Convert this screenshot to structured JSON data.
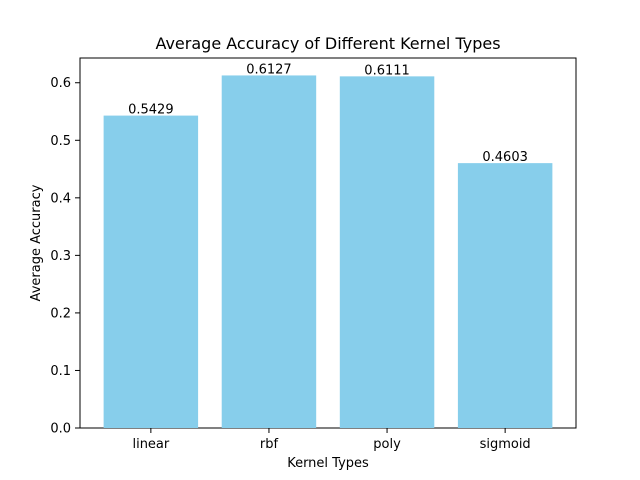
{
  "chart_data": {
    "type": "bar",
    "title": "Average Accuracy of Different Kernel Types",
    "xlabel": "Kernel Types",
    "ylabel": "Average Accuracy",
    "categories": [
      "linear",
      "rbf",
      "poly",
      "sigmoid"
    ],
    "values": [
      0.5429,
      0.6127,
      0.6111,
      0.4603
    ],
    "data_labels": [
      "0.5429",
      "0.6127",
      "0.6111",
      "0.4603"
    ],
    "ylim": [
      0,
      0.643
    ],
    "yticks": [
      0.0,
      0.1,
      0.2,
      0.3,
      0.4,
      0.5,
      0.6
    ],
    "ytick_labels": [
      "0.0",
      "0.1",
      "0.2",
      "0.3",
      "0.4",
      "0.5",
      "0.6"
    ],
    "bar_color": "#87ceeb",
    "grid": false,
    "legend": "none"
  }
}
